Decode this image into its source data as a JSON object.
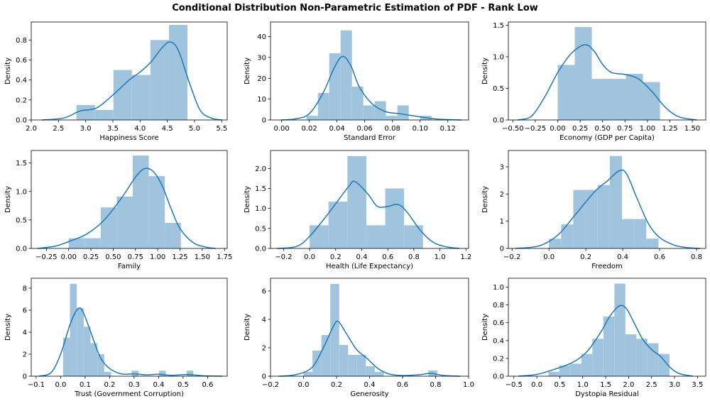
{
  "title": "Conditional Distribution Non-Parametric Estimation of PDF - Rank Low",
  "colors": {
    "bar": "#a1c4de",
    "line": "#1f77b4"
  },
  "chart_data": [
    {
      "type": "bar",
      "xlabel": "Happiness Score",
      "ylabel": "Density",
      "xlim": [
        2.0,
        5.6
      ],
      "ylim": [
        0,
        0.98
      ],
      "xticks": [
        2.0,
        2.5,
        3.0,
        3.5,
        4.0,
        4.5,
        5.0,
        5.5
      ],
      "xtick_labels": [
        "2.0",
        "2.5",
        "3.0",
        "3.5",
        "4.0",
        "4.5",
        "5.0",
        "5.5"
      ],
      "yticks": [
        0,
        0.2,
        0.4,
        0.6,
        0.8
      ],
      "ytick_labels": [
        "0.0",
        "0.2",
        "0.4",
        "0.6",
        "0.8"
      ],
      "bins": [
        [
          2.83,
          3.17,
          0.15
        ],
        [
          3.17,
          3.51,
          0.1
        ],
        [
          3.51,
          3.85,
          0.5
        ],
        [
          3.85,
          4.19,
          0.45
        ],
        [
          4.19,
          4.53,
          0.8
        ],
        [
          4.53,
          4.87,
          0.95
        ]
      ],
      "kde": [
        [
          2.2,
          0
        ],
        [
          2.6,
          0.02
        ],
        [
          2.9,
          0.09
        ],
        [
          3.2,
          0.12
        ],
        [
          3.5,
          0.25
        ],
        [
          3.8,
          0.4
        ],
        [
          4.0,
          0.48
        ],
        [
          4.2,
          0.58
        ],
        [
          4.4,
          0.72
        ],
        [
          4.55,
          0.78
        ],
        [
          4.7,
          0.7
        ],
        [
          4.9,
          0.38
        ],
        [
          5.1,
          0.1
        ],
        [
          5.3,
          0.02
        ],
        [
          5.5,
          0
        ]
      ]
    },
    {
      "type": "bar",
      "xlabel": "Standard Error",
      "ylabel": "Density",
      "xlim": [
        -0.008,
        0.135
      ],
      "ylim": [
        0,
        47
      ],
      "xticks": [
        0,
        0.02,
        0.04,
        0.06,
        0.08,
        0.1,
        0.12
      ],
      "xtick_labels": [
        "0.00",
        "0.02",
        "0.04",
        "0.06",
        "0.08",
        "0.10",
        "0.12"
      ],
      "yticks": [
        0,
        10,
        20,
        30,
        40
      ],
      "ytick_labels": [
        "0",
        "10",
        "20",
        "30",
        "40"
      ],
      "bins": [
        [
          0.018,
          0.0262,
          2
        ],
        [
          0.0262,
          0.0344,
          13
        ],
        [
          0.0344,
          0.0426,
          32
        ],
        [
          0.0426,
          0.0508,
          43
        ],
        [
          0.0508,
          0.059,
          16
        ],
        [
          0.059,
          0.0672,
          7
        ],
        [
          0.0672,
          0.0754,
          9
        ],
        [
          0.0754,
          0.0836,
          2
        ],
        [
          0.0836,
          0.0918,
          7
        ],
        [
          0.0918,
          0.1,
          0
        ],
        [
          0.1,
          0.1082,
          2
        ]
      ],
      "kde": [
        [
          0.0,
          0
        ],
        [
          0.01,
          0.5
        ],
        [
          0.02,
          3
        ],
        [
          0.03,
          13
        ],
        [
          0.038,
          25
        ],
        [
          0.044,
          30.5
        ],
        [
          0.05,
          26
        ],
        [
          0.056,
          16
        ],
        [
          0.065,
          8
        ],
        [
          0.075,
          4
        ],
        [
          0.085,
          3
        ],
        [
          0.095,
          2
        ],
        [
          0.105,
          1
        ],
        [
          0.115,
          0.3
        ],
        [
          0.13,
          0
        ]
      ]
    },
    {
      "type": "bar",
      "xlabel": "Economy (GDP per Capita)",
      "ylabel": "Density",
      "xlim": [
        -0.55,
        1.65
      ],
      "ylim": [
        0,
        1.55
      ],
      "xticks": [
        -0.5,
        -0.25,
        0,
        0.25,
        0.5,
        0.75,
        1.0,
        1.25,
        1.5
      ],
      "xtick_labels": [
        "−0.50",
        "−0.25",
        "0.00",
        "0.25",
        "0.50",
        "0.75",
        "1.00",
        "1.25",
        "1.50"
      ],
      "yticks": [
        0,
        0.5,
        1.0,
        1.5
      ],
      "ytick_labels": [
        "0.0",
        "0.5",
        "1.0",
        "1.5"
      ],
      "bins": [
        [
          0.0,
          0.19,
          0.87
        ],
        [
          0.19,
          0.38,
          1.47
        ],
        [
          0.38,
          0.57,
          0.65
        ],
        [
          0.57,
          0.76,
          0.65
        ],
        [
          0.76,
          0.95,
          0.73
        ],
        [
          0.95,
          1.14,
          0.6
        ]
      ],
      "kde": [
        [
          -0.45,
          0
        ],
        [
          -0.3,
          0.05
        ],
        [
          -0.15,
          0.35
        ],
        [
          0.0,
          0.75
        ],
        [
          0.15,
          1.05
        ],
        [
          0.3,
          1.19
        ],
        [
          0.4,
          1.1
        ],
        [
          0.5,
          0.88
        ],
        [
          0.6,
          0.75
        ],
        [
          0.75,
          0.72
        ],
        [
          0.9,
          0.65
        ],
        [
          1.05,
          0.45
        ],
        [
          1.2,
          0.2
        ],
        [
          1.35,
          0.05
        ],
        [
          1.55,
          0
        ]
      ]
    },
    {
      "type": "bar",
      "xlabel": "Family",
      "ylabel": "Density",
      "xlim": [
        -0.42,
        1.78
      ],
      "ylim": [
        0,
        1.72
      ],
      "xticks": [
        -0.25,
        0,
        0.25,
        0.5,
        0.75,
        1.0,
        1.25,
        1.5,
        1.75
      ],
      "xtick_labels": [
        "−0.25",
        "0.00",
        "0.25",
        "0.50",
        "0.75",
        "1.00",
        "1.25",
        "1.50",
        "1.75"
      ],
      "yticks": [
        0,
        0.5,
        1.0,
        1.5
      ],
      "ytick_labels": [
        "0.0",
        "0.5",
        "1.0",
        "1.5"
      ],
      "bins": [
        [
          0.0,
          0.18,
          0.18
        ],
        [
          0.18,
          0.36,
          0.18
        ],
        [
          0.36,
          0.54,
          0.72
        ],
        [
          0.54,
          0.72,
          0.91
        ],
        [
          0.72,
          0.9,
          1.63
        ],
        [
          0.9,
          1.08,
          1.27
        ],
        [
          1.08,
          1.26,
          0.45
        ]
      ],
      "kde": [
        [
          -0.35,
          0
        ],
        [
          -0.15,
          0.04
        ],
        [
          0.0,
          0.12
        ],
        [
          0.2,
          0.25
        ],
        [
          0.4,
          0.5
        ],
        [
          0.6,
          0.9
        ],
        [
          0.75,
          1.25
        ],
        [
          0.85,
          1.4
        ],
        [
          0.95,
          1.35
        ],
        [
          1.05,
          1.1
        ],
        [
          1.15,
          0.7
        ],
        [
          1.25,
          0.35
        ],
        [
          1.4,
          0.1
        ],
        [
          1.55,
          0.02
        ],
        [
          1.65,
          0
        ]
      ]
    },
    {
      "type": "bar",
      "xlabel": "Health (Life Expectancy)",
      "ylabel": "Density",
      "xlim": [
        -0.3,
        1.22
      ],
      "ylim": [
        0,
        2.45
      ],
      "xticks": [
        -0.2,
        0,
        0.2,
        0.4,
        0.6,
        0.8,
        1.0,
        1.2
      ],
      "xtick_labels": [
        "−0.2",
        "0.0",
        "0.2",
        "0.4",
        "0.6",
        "0.8",
        "1.0",
        "1.2"
      ],
      "yticks": [
        0,
        0.5,
        1.0,
        1.5,
        2.0
      ],
      "ytick_labels": [
        "0.0",
        "0.5",
        "1.0",
        "1.5",
        "2.0"
      ],
      "bins": [
        [
          0.0,
          0.145,
          0.58
        ],
        [
          0.145,
          0.29,
          1.17
        ],
        [
          0.29,
          0.435,
          2.31
        ],
        [
          0.435,
          0.58,
          0.58
        ],
        [
          0.58,
          0.725,
          1.5
        ],
        [
          0.725,
          0.87,
          0.58
        ]
      ],
      "kde": [
        [
          -0.25,
          0
        ],
        [
          -0.1,
          0.05
        ],
        [
          0.0,
          0.3
        ],
        [
          0.15,
          0.9
        ],
        [
          0.3,
          1.55
        ],
        [
          0.35,
          1.67
        ],
        [
          0.45,
          1.35
        ],
        [
          0.52,
          1.05
        ],
        [
          0.6,
          1.05
        ],
        [
          0.68,
          1.1
        ],
        [
          0.75,
          0.9
        ],
        [
          0.85,
          0.45
        ],
        [
          0.95,
          0.15
        ],
        [
          1.05,
          0.04
        ],
        [
          1.15,
          0
        ]
      ]
    },
    {
      "type": "bar",
      "xlabel": "Freedom",
      "ylabel": "Density",
      "xlim": [
        -0.22,
        0.85
      ],
      "ylim": [
        0,
        3.6
      ],
      "xticks": [
        -0.2,
        0,
        0.2,
        0.4,
        0.6,
        0.8
      ],
      "xtick_labels": [
        "−0.2",
        "0.0",
        "0.2",
        "0.4",
        "0.6",
        "0.8"
      ],
      "yticks": [
        0,
        1,
        2,
        3
      ],
      "ytick_labels": [
        "0",
        "1",
        "2",
        "3"
      ],
      "bins": [
        [
          0.0,
          0.066,
          0.36
        ],
        [
          0.066,
          0.132,
          0.88
        ],
        [
          0.132,
          0.198,
          2.15
        ],
        [
          0.198,
          0.264,
          2.15
        ],
        [
          0.264,
          0.33,
          2.33
        ],
        [
          0.33,
          0.396,
          3.4
        ],
        [
          0.396,
          0.462,
          1.08
        ],
        [
          0.462,
          0.528,
          1.08
        ],
        [
          0.528,
          0.594,
          0.36
        ]
      ],
      "kde": [
        [
          -0.18,
          0
        ],
        [
          -0.05,
          0.1
        ],
        [
          0.05,
          0.5
        ],
        [
          0.15,
          1.3
        ],
        [
          0.25,
          2.1
        ],
        [
          0.32,
          2.5
        ],
        [
          0.38,
          2.85
        ],
        [
          0.42,
          2.75
        ],
        [
          0.48,
          1.8
        ],
        [
          0.54,
          0.9
        ],
        [
          0.6,
          0.4
        ],
        [
          0.68,
          0.12
        ],
        [
          0.75,
          0.03
        ],
        [
          0.82,
          0
        ]
      ]
    },
    {
      "type": "bar",
      "xlabel": "Trust (Government Corruption)",
      "ylabel": "Density",
      "xlim": [
        -0.12,
        0.68
      ],
      "ylim": [
        0,
        8.9
      ],
      "xticks": [
        -0.1,
        0,
        0.1,
        0.2,
        0.3,
        0.4,
        0.5,
        0.6
      ],
      "xtick_labels": [
        "−0.1",
        "0.0",
        "0.1",
        "0.2",
        "0.3",
        "0.4",
        "0.5",
        "0.6"
      ],
      "yticks": [
        0,
        2,
        4,
        6,
        8
      ],
      "ytick_labels": [
        "0",
        "2",
        "4",
        "6",
        "8"
      ],
      "bins": [
        [
          0.01,
          0.038,
          3.5
        ],
        [
          0.038,
          0.066,
          8.4
        ],
        [
          0.066,
          0.094,
          6.2
        ],
        [
          0.094,
          0.122,
          4.5
        ],
        [
          0.122,
          0.15,
          3.0
        ],
        [
          0.15,
          0.178,
          2.0
        ],
        [
          0.178,
          0.206,
          0.4
        ],
        [
          0.206,
          0.234,
          0
        ],
        [
          0.234,
          0.262,
          0
        ],
        [
          0.262,
          0.29,
          0
        ],
        [
          0.29,
          0.318,
          0.5
        ],
        [
          0.318,
          0.346,
          0
        ],
        [
          0.346,
          0.374,
          0
        ],
        [
          0.374,
          0.402,
          0
        ],
        [
          0.402,
          0.43,
          0.5
        ],
        [
          0.43,
          0.458,
          0
        ],
        [
          0.458,
          0.486,
          0
        ],
        [
          0.486,
          0.514,
          0
        ],
        [
          0.514,
          0.542,
          0.5
        ]
      ],
      "kde": [
        [
          -0.09,
          0
        ],
        [
          -0.04,
          0.3
        ],
        [
          0.0,
          2.0
        ],
        [
          0.04,
          4.8
        ],
        [
          0.07,
          6.1
        ],
        [
          0.09,
          5.9
        ],
        [
          0.12,
          4.2
        ],
        [
          0.16,
          1.8
        ],
        [
          0.2,
          0.7
        ],
        [
          0.25,
          0.2
        ],
        [
          0.3,
          0.22
        ],
        [
          0.35,
          0.12
        ],
        [
          0.4,
          0.18
        ],
        [
          0.45,
          0.08
        ],
        [
          0.52,
          0.15
        ],
        [
          0.58,
          0.04
        ],
        [
          0.66,
          0
        ]
      ]
    },
    {
      "type": "bar",
      "xlabel": "Generosity",
      "ylabel": "Density",
      "xlim": [
        -0.2,
        1.0
      ],
      "ylim": [
        0,
        6.9
      ],
      "xticks": [
        -0.2,
        0,
        0.2,
        0.4,
        0.6,
        0.8,
        1.0
      ],
      "xtick_labels": [
        "−0.2",
        "0.0",
        "0.2",
        "0.4",
        "0.6",
        "0.8",
        "1.0"
      ],
      "yticks": [
        0,
        2,
        4,
        6
      ],
      "ytick_labels": [
        "0",
        "2",
        "4",
        "6"
      ],
      "bins": [
        [
          0.0,
          0.054,
          0.3
        ],
        [
          0.054,
          0.108,
          1.8
        ],
        [
          0.108,
          0.162,
          2.9
        ],
        [
          0.162,
          0.216,
          6.5
        ],
        [
          0.216,
          0.27,
          2.2
        ],
        [
          0.27,
          0.324,
          1.5
        ],
        [
          0.324,
          0.378,
          1.5
        ],
        [
          0.378,
          0.432,
          0.7
        ],
        [
          0.432,
          0.486,
          0.3
        ],
        [
          0.486,
          0.54,
          0
        ],
        [
          0.54,
          0.594,
          0
        ],
        [
          0.594,
          0.648,
          0
        ],
        [
          0.648,
          0.702,
          0
        ],
        [
          0.702,
          0.756,
          0
        ],
        [
          0.756,
          0.81,
          0.4
        ]
      ],
      "kde": [
        [
          -0.15,
          0
        ],
        [
          -0.05,
          0.1
        ],
        [
          0.05,
          0.6
        ],
        [
          0.12,
          2.0
        ],
        [
          0.18,
          3.5
        ],
        [
          0.21,
          3.85
        ],
        [
          0.26,
          3.0
        ],
        [
          0.32,
          1.9
        ],
        [
          0.38,
          1.3
        ],
        [
          0.45,
          0.55
        ],
        [
          0.52,
          0.15
        ],
        [
          0.6,
          0.05
        ],
        [
          0.7,
          0.1
        ],
        [
          0.77,
          0.2
        ],
        [
          0.85,
          0.05
        ],
        [
          0.95,
          0
        ]
      ]
    },
    {
      "type": "bar",
      "xlabel": "Dystopia Residual",
      "ylabel": "Density",
      "xlim": [
        -0.62,
        3.68
      ],
      "ylim": [
        0,
        1.1
      ],
      "xticks": [
        -0.5,
        0,
        0.5,
        1.0,
        1.5,
        2.0,
        2.5,
        3.0,
        3.5
      ],
      "xtick_labels": [
        "−0.5",
        "0.0",
        "0.5",
        "1.0",
        "1.5",
        "2.0",
        "2.5",
        "3.0",
        "3.5"
      ],
      "yticks": [
        0,
        0.2,
        0.4,
        0.6,
        0.8,
        1.0
      ],
      "ytick_labels": [
        "0.0",
        "0.2",
        "0.4",
        "0.6",
        "0.8",
        "1.0"
      ],
      "bins": [
        [
          0.25,
          0.49,
          0.05
        ],
        [
          0.49,
          0.73,
          0.12
        ],
        [
          0.73,
          0.97,
          0.14
        ],
        [
          0.97,
          1.21,
          0.25
        ],
        [
          1.21,
          1.45,
          0.42
        ],
        [
          1.45,
          1.69,
          0.67
        ],
        [
          1.69,
          1.93,
          1.04
        ],
        [
          1.93,
          2.17,
          0.47
        ],
        [
          2.17,
          2.41,
          0.42
        ],
        [
          2.41,
          2.65,
          0.37
        ],
        [
          2.65,
          2.89,
          0.25
        ]
      ],
      "kde": [
        [
          -0.4,
          0
        ],
        [
          0.0,
          0.02
        ],
        [
          0.4,
          0.08
        ],
        [
          0.8,
          0.16
        ],
        [
          1.1,
          0.28
        ],
        [
          1.4,
          0.5
        ],
        [
          1.6,
          0.68
        ],
        [
          1.8,
          0.79
        ],
        [
          1.95,
          0.76
        ],
        [
          2.1,
          0.62
        ],
        [
          2.3,
          0.42
        ],
        [
          2.5,
          0.3
        ],
        [
          2.7,
          0.22
        ],
        [
          2.9,
          0.1
        ],
        [
          3.1,
          0.03
        ],
        [
          3.4,
          0
        ]
      ]
    }
  ]
}
